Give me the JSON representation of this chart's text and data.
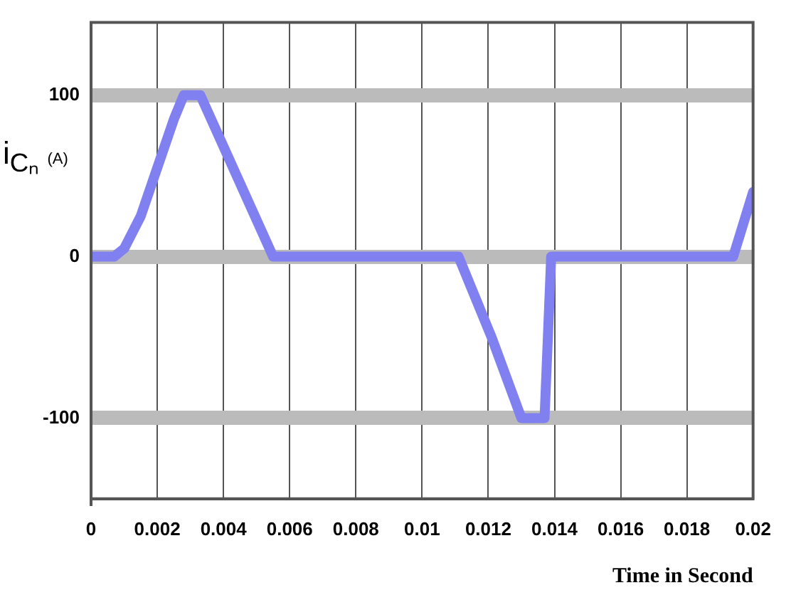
{
  "chart_data": {
    "type": "line",
    "xlabel": "Time in Second",
    "ylabel": "i$_{Cₙ}$ (A)",
    "series": [
      {
        "color": "#8080f0",
        "x": [
          0,
          0.0007,
          0.001,
          0.0015,
          0.002,
          0.0025,
          0.0028,
          0.0033,
          0.0044,
          0.0055,
          0.0111,
          0.0121,
          0.013,
          0.0137,
          0.0139,
          0.0194,
          0.02
        ],
        "values": [
          0,
          0,
          5,
          25,
          55,
          85,
          100,
          100,
          50,
          0,
          0,
          -50,
          -100,
          -100,
          0,
          0,
          40
        ]
      }
    ],
    "xlim": [
      0,
      0.02
    ],
    "xticks": [
      0,
      0.002,
      0.004,
      0.006,
      0.008,
      0.01,
      0.012,
      0.014,
      0.016,
      0.018,
      0.02
    ],
    "ylim": [
      -150,
      145
    ],
    "yticks": [
      -100,
      0,
      100
    ],
    "grid": true,
    "legend": false,
    "marker": "none",
    "line_style": "solid"
  }
}
